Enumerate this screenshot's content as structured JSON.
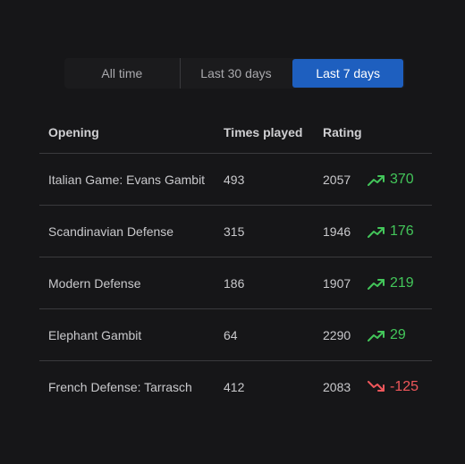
{
  "colors": {
    "background": "#161618",
    "accent": "#1e5fbf",
    "positive": "#43c65a",
    "negative": "#f0575b"
  },
  "filters": {
    "options": [
      "All time",
      "Last 30 days",
      "Last 7 days"
    ],
    "selected": "Last 7 days"
  },
  "table": {
    "headers": {
      "opening": "Opening",
      "times_played": "Times played",
      "rating": "Rating"
    },
    "rows": [
      {
        "opening": "Italian Game: Evans Gambit",
        "times_played": "493",
        "rating": "2057",
        "change": "370",
        "direction": "up",
        "trend_icon": "trending-up-icon"
      },
      {
        "opening": "Scandinavian Defense",
        "times_played": "315",
        "rating": "1946",
        "change": "176",
        "direction": "up",
        "trend_icon": "trending-up-icon"
      },
      {
        "opening": "Modern Defense",
        "times_played": "186",
        "rating": "1907",
        "change": "219",
        "direction": "up",
        "trend_icon": "trending-up-icon"
      },
      {
        "opening": "Elephant Gambit",
        "times_played": "64",
        "rating": "2290",
        "change": "29",
        "direction": "up",
        "trend_icon": "trending-up-icon"
      },
      {
        "opening": "French Defense: Tarrasch",
        "times_played": "412",
        "rating": "2083",
        "change": "-125",
        "direction": "down",
        "trend_icon": "trending-down-icon"
      }
    ]
  }
}
